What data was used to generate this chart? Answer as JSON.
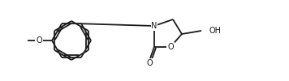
{
  "bg_color": "#ffffff",
  "line_color": "#1a1a1a",
  "line_width": 1.3,
  "font_size": 7.0,
  "figsize": [
    3.56,
    1.0
  ],
  "dpi": 100,
  "xlim": [
    0,
    356
  ],
  "ylim": [
    0,
    100
  ]
}
